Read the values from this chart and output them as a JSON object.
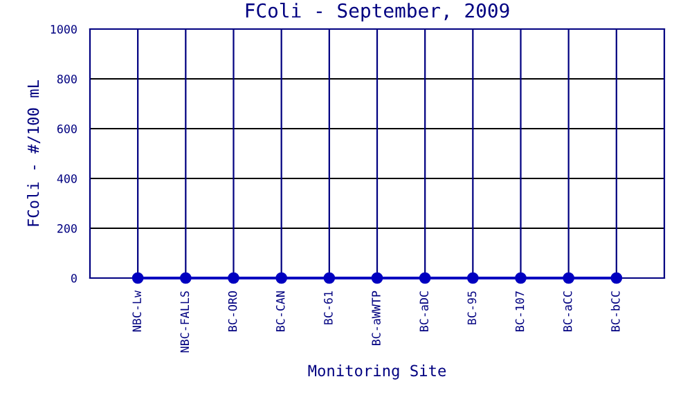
{
  "chart_data": {
    "type": "line",
    "title": "FColi - September, 2009",
    "xlabel": "Monitoring Site",
    "ylabel": "FColi - #/100 mL",
    "categories": [
      "NBC-Lw",
      "NBC-FALLS",
      "BC-ORO",
      "BC-CAN",
      "BC-61",
      "BC-aWWTP",
      "BC-aDC",
      "BC-95",
      "BC-107",
      "BC-aCC",
      "BC-bCC"
    ],
    "series": [
      {
        "color": "#0000c0",
        "values": [
          0,
          0,
          0,
          0,
          0,
          0,
          0,
          0,
          0,
          0,
          0
        ]
      }
    ],
    "ylim": [
      0,
      1000
    ],
    "yticks": [
      0,
      200,
      400,
      600,
      800,
      1000
    ],
    "grid": true,
    "marker": "circle",
    "line_style": "solid"
  }
}
